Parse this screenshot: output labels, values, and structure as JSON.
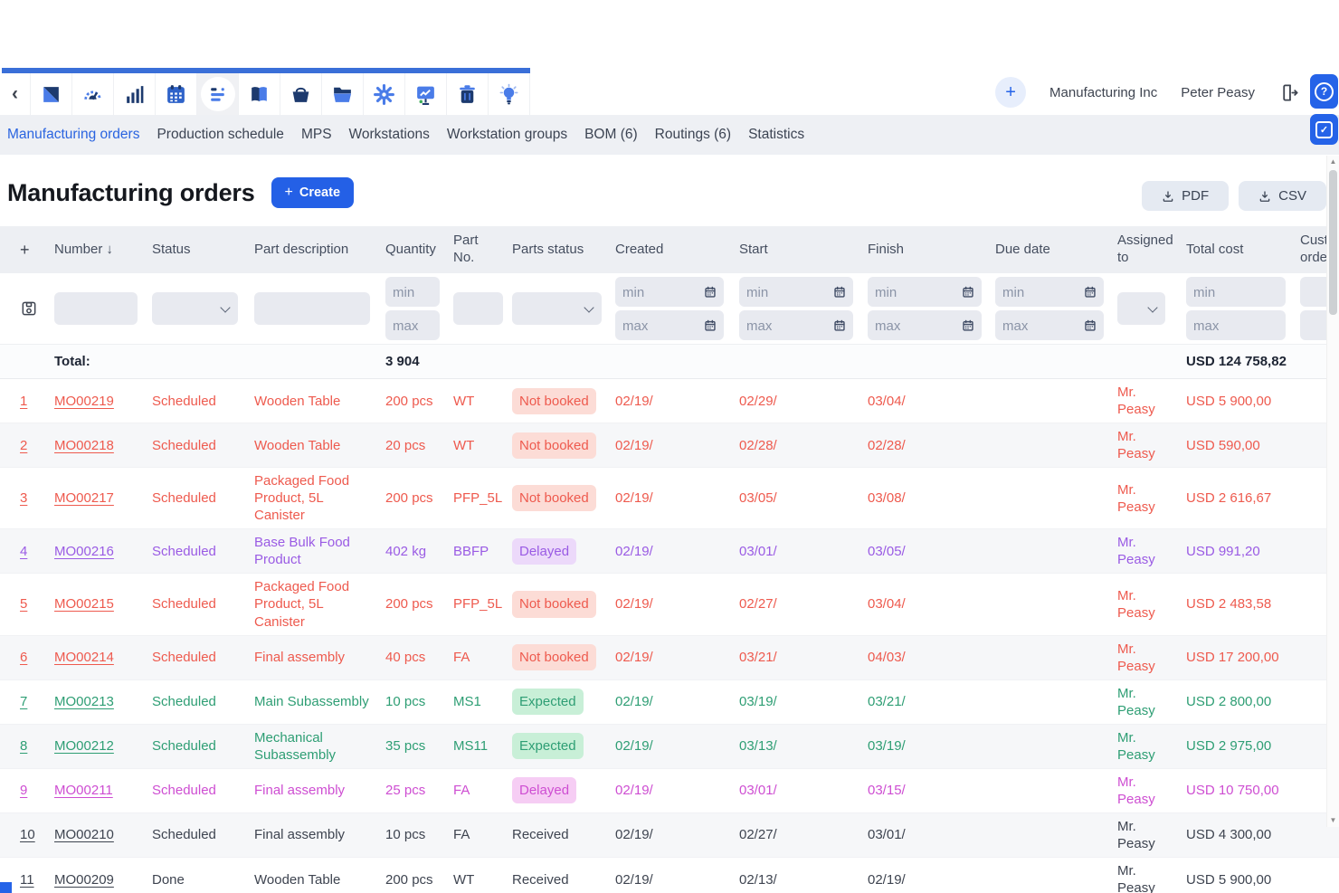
{
  "topbar": {
    "company": "Manufacturing Inc",
    "user": "Peter Peasy",
    "add_label": "+",
    "toolbar_icons": [
      "back-icon",
      "logo-icon",
      "gauge-icon",
      "bar-chart-icon",
      "calendar-icon",
      "gantt-icon",
      "book-icon",
      "basket-icon",
      "folder-icon",
      "gear-icon",
      "presentation-icon",
      "trash-icon",
      "bulb-icon"
    ]
  },
  "nav_tabs": [
    {
      "label": "Manufacturing orders",
      "active": true
    },
    {
      "label": "Production schedule",
      "active": false
    },
    {
      "label": "MPS",
      "active": false
    },
    {
      "label": "Workstations",
      "active": false
    },
    {
      "label": "Workstation groups",
      "active": false
    },
    {
      "label": "BOM (6)",
      "active": false
    },
    {
      "label": "Routings (6)",
      "active": false
    },
    {
      "label": "Statistics",
      "active": false
    }
  ],
  "page": {
    "title": "Manufacturing orders",
    "create_button": "Create",
    "pdf_button": "PDF",
    "csv_button": "CSV"
  },
  "table": {
    "headers": {
      "plus": "+",
      "number": "Number",
      "sort_icon": "↓",
      "status": "Status",
      "part_description": "Part description",
      "quantity": "Quantity",
      "part_no": "Part No.",
      "parts_status": "Parts status",
      "created": "Created",
      "start": "Start",
      "finish": "Finish",
      "due_date": "Due date",
      "assigned_to": "Assigned to",
      "total_cost": "Total cost",
      "customer_orders": "Customer orders"
    },
    "filters": {
      "min_placeholder": "min",
      "max_placeholder": "max"
    },
    "total_row": {
      "label": "Total:",
      "quantity": "3 904",
      "total_cost": "USD 124 758,82"
    },
    "rows": [
      {
        "num": "1",
        "number": "MO00219",
        "status": "Scheduled",
        "part_description": "Wooden Table",
        "quantity": "200 pcs",
        "part_no": "WT",
        "parts_status": "Not booked",
        "badge": true,
        "created": "02/19/",
        "start": "02/29/",
        "finish": "03/04/",
        "due_date": "",
        "assigned_to": "Mr. Peasy",
        "total_cost": "USD 5 900,00",
        "color": "red"
      },
      {
        "num": "2",
        "number": "MO00218",
        "status": "Scheduled",
        "part_description": "Wooden Table",
        "quantity": "20 pcs",
        "part_no": "WT",
        "parts_status": "Not booked",
        "badge": true,
        "created": "02/19/",
        "start": "02/28/",
        "finish": "02/28/",
        "due_date": "",
        "assigned_to": "Mr. Peasy",
        "total_cost": "USD 590,00",
        "color": "red"
      },
      {
        "num": "3",
        "number": "MO00217",
        "status": "Scheduled",
        "part_description": "Packaged Food Product, 5L Canister",
        "quantity": "200 pcs",
        "part_no": "PFP_5L",
        "parts_status": "Not booked",
        "badge": true,
        "created": "02/19/",
        "start": "03/05/",
        "finish": "03/08/",
        "due_date": "",
        "assigned_to": "Mr. Peasy",
        "total_cost": "USD 2 616,67",
        "color": "red"
      },
      {
        "num": "4",
        "number": "MO00216",
        "status": "Scheduled",
        "part_description": "Base Bulk Food Product",
        "quantity": "402 kg",
        "part_no": "BBFP",
        "parts_status": "Delayed",
        "badge": true,
        "created": "02/19/",
        "start": "03/01/",
        "finish": "03/05/",
        "due_date": "",
        "assigned_to": "Mr. Peasy",
        "total_cost": "USD 991,20",
        "color": "purple"
      },
      {
        "num": "5",
        "number": "MO00215",
        "status": "Scheduled",
        "part_description": "Packaged Food Product, 5L Canister",
        "quantity": "200 pcs",
        "part_no": "PFP_5L",
        "parts_status": "Not booked",
        "badge": true,
        "created": "02/19/",
        "start": "02/27/",
        "finish": "03/04/",
        "due_date": "",
        "assigned_to": "Mr. Peasy",
        "total_cost": "USD 2 483,58",
        "color": "red"
      },
      {
        "num": "6",
        "number": "MO00214",
        "status": "Scheduled",
        "part_description": "Final assembly",
        "quantity": "40 pcs",
        "part_no": "FA",
        "parts_status": "Not booked",
        "badge": true,
        "created": "02/19/",
        "start": "03/21/",
        "finish": "04/03/",
        "due_date": "",
        "assigned_to": "Mr. Peasy",
        "total_cost": "USD 17 200,00",
        "color": "red"
      },
      {
        "num": "7",
        "number": "MO00213",
        "status": "Scheduled",
        "part_description": "Main Subassembly",
        "quantity": "10 pcs",
        "part_no": "MS1",
        "parts_status": "Expected",
        "badge": true,
        "created": "02/19/",
        "start": "03/19/",
        "finish": "03/21/",
        "due_date": "",
        "assigned_to": "Mr. Peasy",
        "total_cost": "USD 2 800,00",
        "color": "green"
      },
      {
        "num": "8",
        "number": "MO00212",
        "status": "Scheduled",
        "part_description": "Mechanical Subassembly",
        "quantity": "35 pcs",
        "part_no": "MS11",
        "parts_status": "Expected",
        "badge": true,
        "created": "02/19/",
        "start": "03/13/",
        "finish": "03/19/",
        "due_date": "",
        "assigned_to": "Mr. Peasy",
        "total_cost": "USD 2 975,00",
        "color": "green"
      },
      {
        "num": "9",
        "number": "MO00211",
        "status": "Scheduled",
        "part_description": "Final assembly",
        "quantity": "25 pcs",
        "part_no": "FA",
        "parts_status": "Delayed",
        "badge": true,
        "created": "02/19/",
        "start": "03/01/",
        "finish": "03/15/",
        "due_date": "",
        "assigned_to": "Mr. Peasy",
        "total_cost": "USD 10 750,00",
        "color": "magenta"
      },
      {
        "num": "10",
        "number": "MO00210",
        "status": "Scheduled",
        "part_description": "Final assembly",
        "quantity": "10 pcs",
        "part_no": "FA",
        "parts_status": "Received",
        "badge": false,
        "created": "02/19/",
        "start": "02/27/",
        "finish": "03/01/",
        "due_date": "",
        "assigned_to": "Mr. Peasy",
        "total_cost": "USD 4 300,00",
        "color": "neutral"
      },
      {
        "num": "11",
        "number": "MO00209",
        "status": "Done",
        "part_description": "Wooden Table",
        "quantity": "200 pcs",
        "part_no": "WT",
        "parts_status": "Received",
        "badge": false,
        "created": "02/19/",
        "start": "02/13/",
        "finish": "02/19/",
        "due_date": "",
        "assigned_to": "Mr. Peasy",
        "total_cost": "USD 5 900,00",
        "color": "neutral"
      }
    ]
  },
  "colors": {
    "accent_blue": "#2563e8",
    "toolbar_navy": "#1d3a6e",
    "toolbar_blue": "#4a7ce8",
    "status_red": "#ee5a4e",
    "status_purple": "#9a5be4",
    "status_green": "#2e9e74",
    "status_magenta": "#ce4ed2",
    "status_neutral": "#3e4450",
    "badge_red_bg": "#fcdcd6",
    "badge_purple_bg": "#ecd9fa",
    "badge_green_bg": "#c8efd7",
    "badge_magenta_bg": "#f6cdf4"
  }
}
